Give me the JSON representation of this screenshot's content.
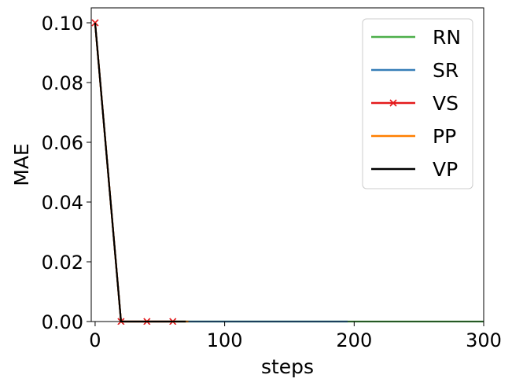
{
  "chart_data": {
    "type": "line",
    "title": "",
    "xlabel": "steps",
    "ylabel": "MAE",
    "xlim": [
      -3,
      300
    ],
    "ylim": [
      0,
      0.105
    ],
    "xticks": [
      0,
      100,
      200,
      300
    ],
    "xtick_labels": [
      "0",
      "100",
      "200",
      "300"
    ],
    "yticks": [
      0.0,
      0.02,
      0.04,
      0.06,
      0.08,
      0.1
    ],
    "ytick_labels": [
      "0.00",
      "0.02",
      "0.04",
      "0.06",
      "0.08",
      "0.10"
    ],
    "grid": false,
    "legend_position": "top-right",
    "series": [
      {
        "name": "RN",
        "color": "#4daf4a",
        "marker": "none",
        "x": [
          0,
          20,
          40,
          60,
          80,
          100,
          120,
          140,
          160,
          180,
          200,
          220,
          240,
          260,
          280,
          300
        ],
        "y": [
          0.1,
          0,
          0,
          0,
          0,
          0,
          0,
          0,
          0,
          0,
          0,
          0,
          0,
          0,
          0,
          0
        ]
      },
      {
        "name": "SR",
        "color": "#377eb8",
        "marker": "none",
        "x": [
          0,
          20,
          40,
          60,
          80,
          100,
          120,
          140,
          160,
          180,
          195
        ],
        "y": [
          0.1,
          0,
          0,
          0,
          0,
          0,
          0,
          0,
          0,
          0,
          0
        ]
      },
      {
        "name": "VS",
        "color": "#e41a1c",
        "marker": "x",
        "x": [
          0,
          20,
          40,
          60
        ],
        "y": [
          0.1,
          0,
          0,
          0
        ]
      },
      {
        "name": "PP",
        "color": "#ff7f00",
        "marker": "none",
        "x": [
          0,
          20,
          40,
          60,
          72
        ],
        "y": [
          0.1,
          0,
          0,
          0,
          0
        ]
      },
      {
        "name": "VP",
        "color": "#000000",
        "marker": "none",
        "x": [
          0,
          20,
          40,
          60,
          70
        ],
        "y": [
          0.1,
          0,
          0,
          0,
          0
        ]
      }
    ]
  }
}
